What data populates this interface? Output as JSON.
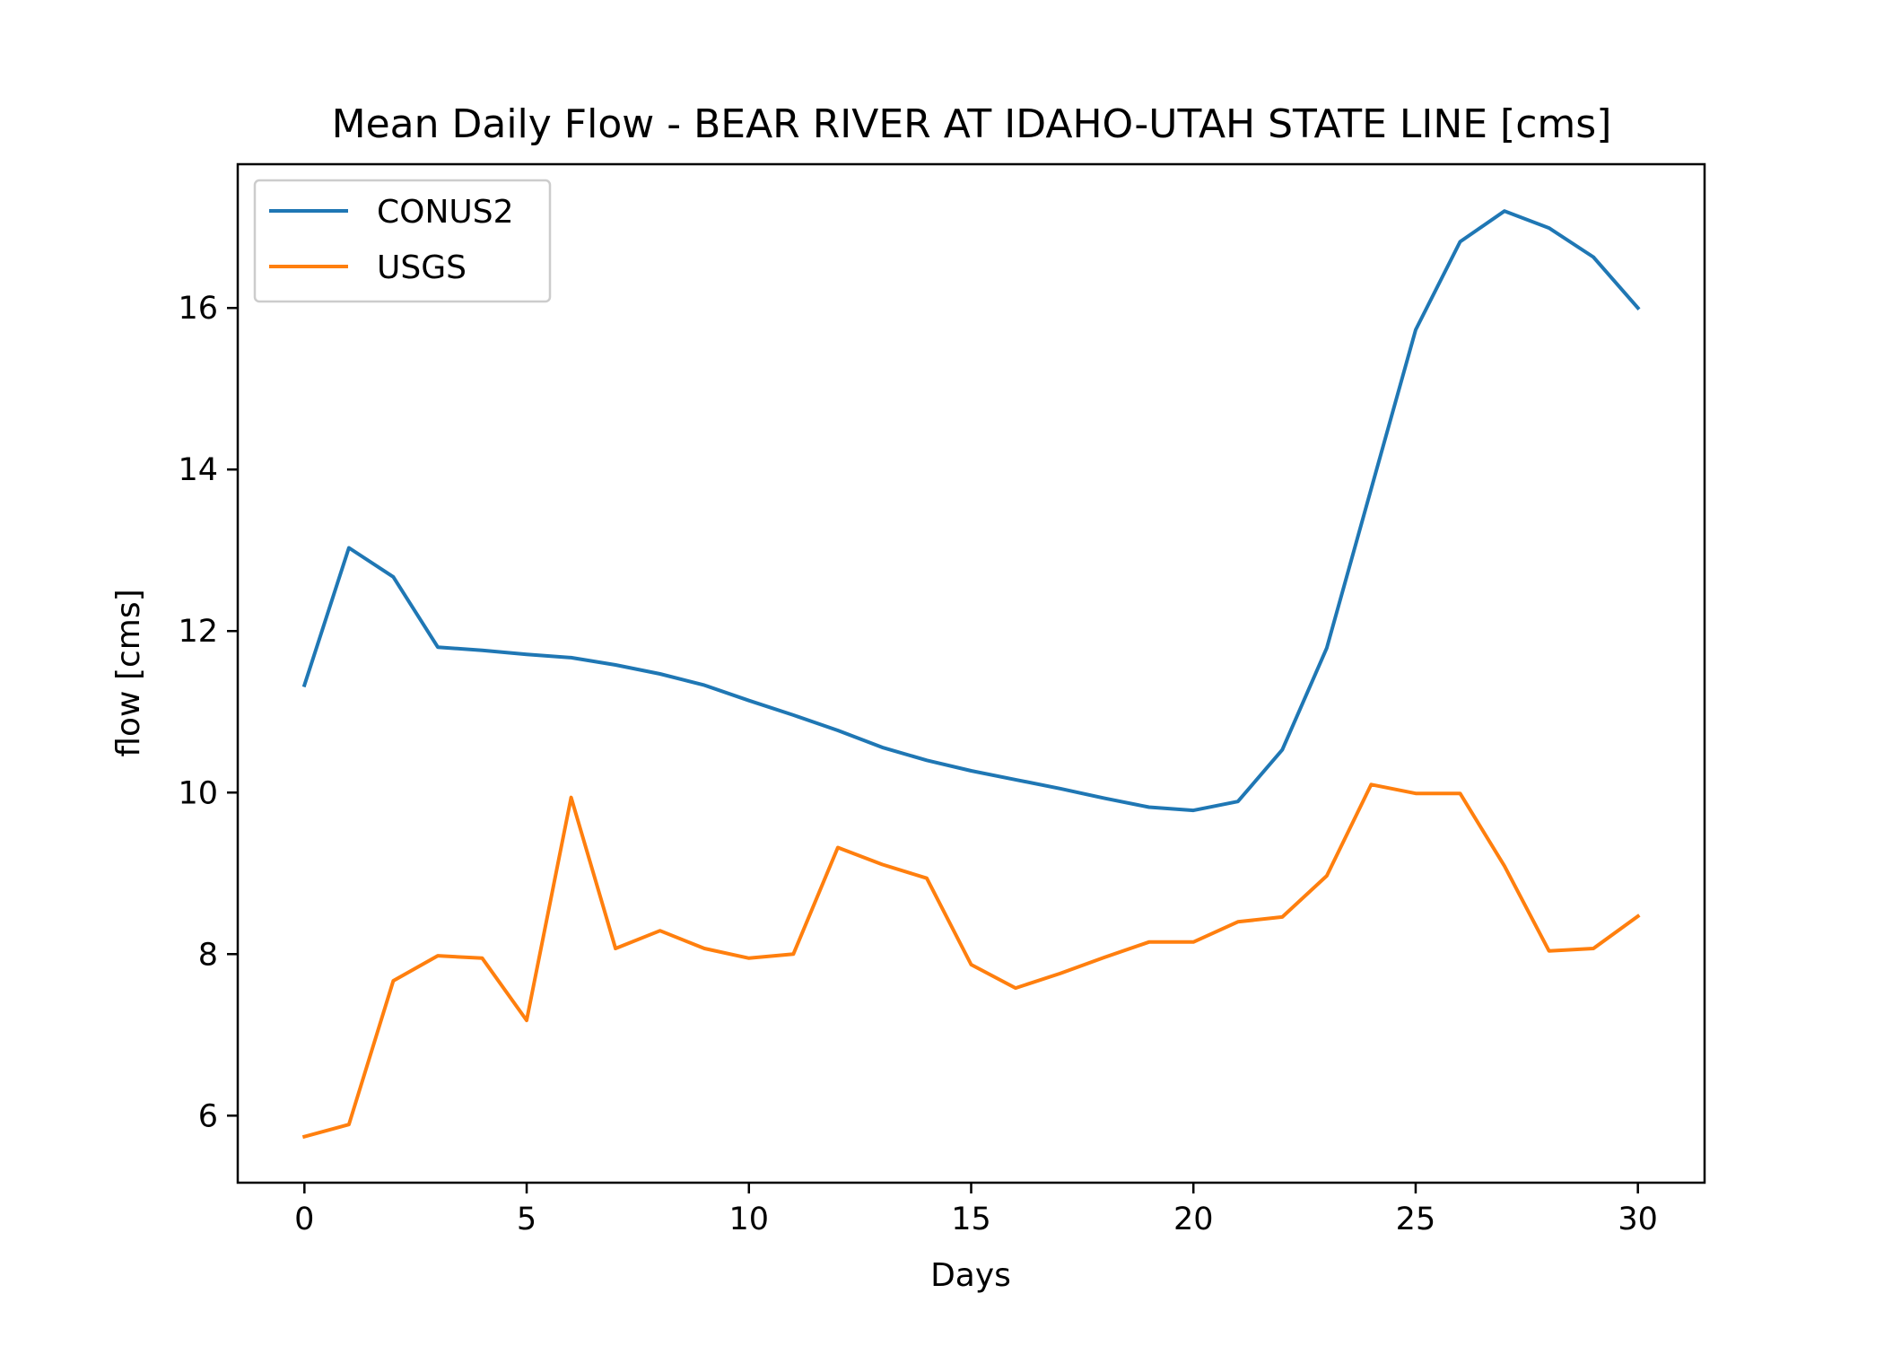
{
  "chart_data": {
    "type": "line",
    "title": "Mean Daily Flow - BEAR RIVER AT IDAHO-UTAH STATE LINE [cms]",
    "xlabel": "Days",
    "ylabel": "flow [cms]",
    "xlim": [
      -1.5,
      31.5
    ],
    "ylim": [
      5.17,
      17.78
    ],
    "xticks": [
      0,
      5,
      10,
      15,
      20,
      25,
      30
    ],
    "yticks": [
      6,
      8,
      10,
      12,
      14,
      16
    ],
    "grid": false,
    "legend": "upper-left",
    "series": [
      {
        "name": "CONUS2",
        "color": "#1f77b4",
        "x": [
          0,
          1,
          2,
          3,
          4,
          5,
          6,
          7,
          8,
          9,
          10,
          11,
          12,
          13,
          14,
          15,
          16,
          17,
          18,
          19,
          20,
          21,
          22,
          23,
          24,
          25,
          26,
          27,
          28,
          29,
          30
        ],
        "values": [
          11.33,
          13.03,
          12.67,
          11.8,
          11.76,
          11.71,
          11.67,
          11.58,
          11.47,
          11.33,
          11.14,
          10.96,
          10.77,
          10.56,
          10.4,
          10.27,
          10.16,
          10.05,
          9.93,
          9.82,
          9.78,
          9.89,
          10.53,
          11.79,
          13.76,
          15.73,
          16.82,
          17.2,
          16.99,
          16.63,
          16.0
        ]
      },
      {
        "name": "USGS",
        "color": "#ff7f0e",
        "x": [
          0,
          1,
          2,
          3,
          4,
          5,
          6,
          7,
          8,
          9,
          10,
          11,
          12,
          13,
          14,
          15,
          16,
          17,
          18,
          19,
          20,
          21,
          22,
          23,
          24,
          25,
          26,
          27,
          28,
          29,
          30
        ],
        "values": [
          5.74,
          5.89,
          7.67,
          7.98,
          7.95,
          7.18,
          9.94,
          8.07,
          8.29,
          8.07,
          7.95,
          8.0,
          9.32,
          9.11,
          8.94,
          7.87,
          7.58,
          7.76,
          7.96,
          8.15,
          8.15,
          8.4,
          8.46,
          8.97,
          10.1,
          9.99,
          9.99,
          9.09,
          8.04,
          8.07,
          8.47
        ]
      }
    ]
  }
}
